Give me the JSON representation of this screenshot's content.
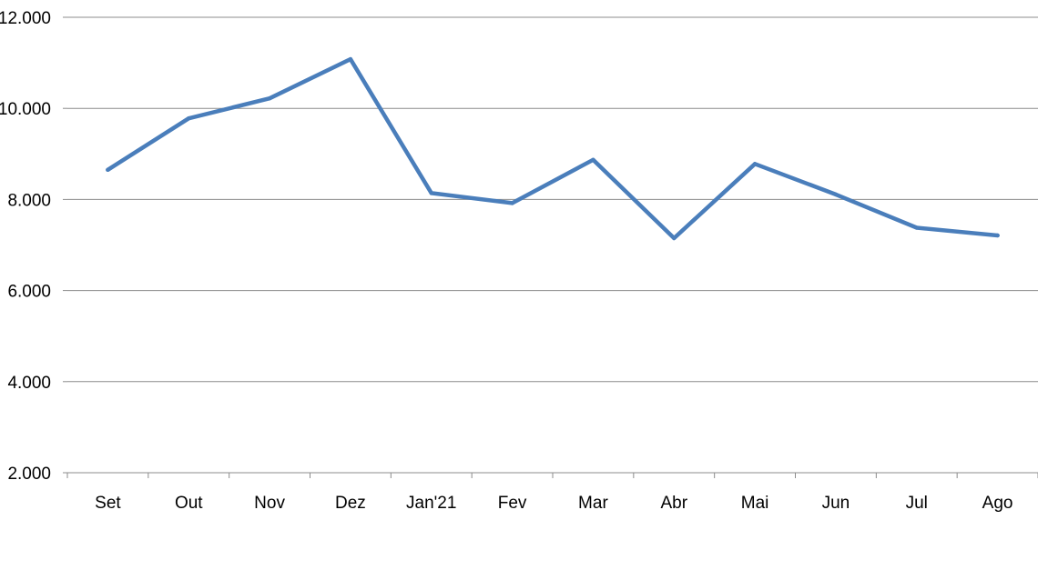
{
  "chart_data": {
    "type": "line",
    "title": "",
    "xlabel": "",
    "ylabel": "",
    "categories": [
      "Set",
      "Out",
      "Nov",
      "Dez",
      "Jan'21",
      "Fev",
      "Mar",
      "Abr",
      "Mai",
      "Jun",
      "Jul",
      "Ago"
    ],
    "series": [
      {
        "values": [
          8650,
          9780,
          10220,
          11080,
          8140,
          7920,
          8870,
          7150,
          8780,
          8110,
          7380,
          7210
        ],
        "color": "#4a7ebb"
      }
    ],
    "ylim": [
      2000,
      12000
    ],
    "yticks": [
      {
        "value": 2000,
        "label": "2.000"
      },
      {
        "value": 4000,
        "label": "4.000"
      },
      {
        "value": 6000,
        "label": "6.000"
      },
      {
        "value": 8000,
        "label": "8.000"
      },
      {
        "value": 10000,
        "label": "10.000"
      },
      {
        "value": 12000,
        "label": "12.000"
      }
    ],
    "grid": true,
    "legend": "none"
  }
}
